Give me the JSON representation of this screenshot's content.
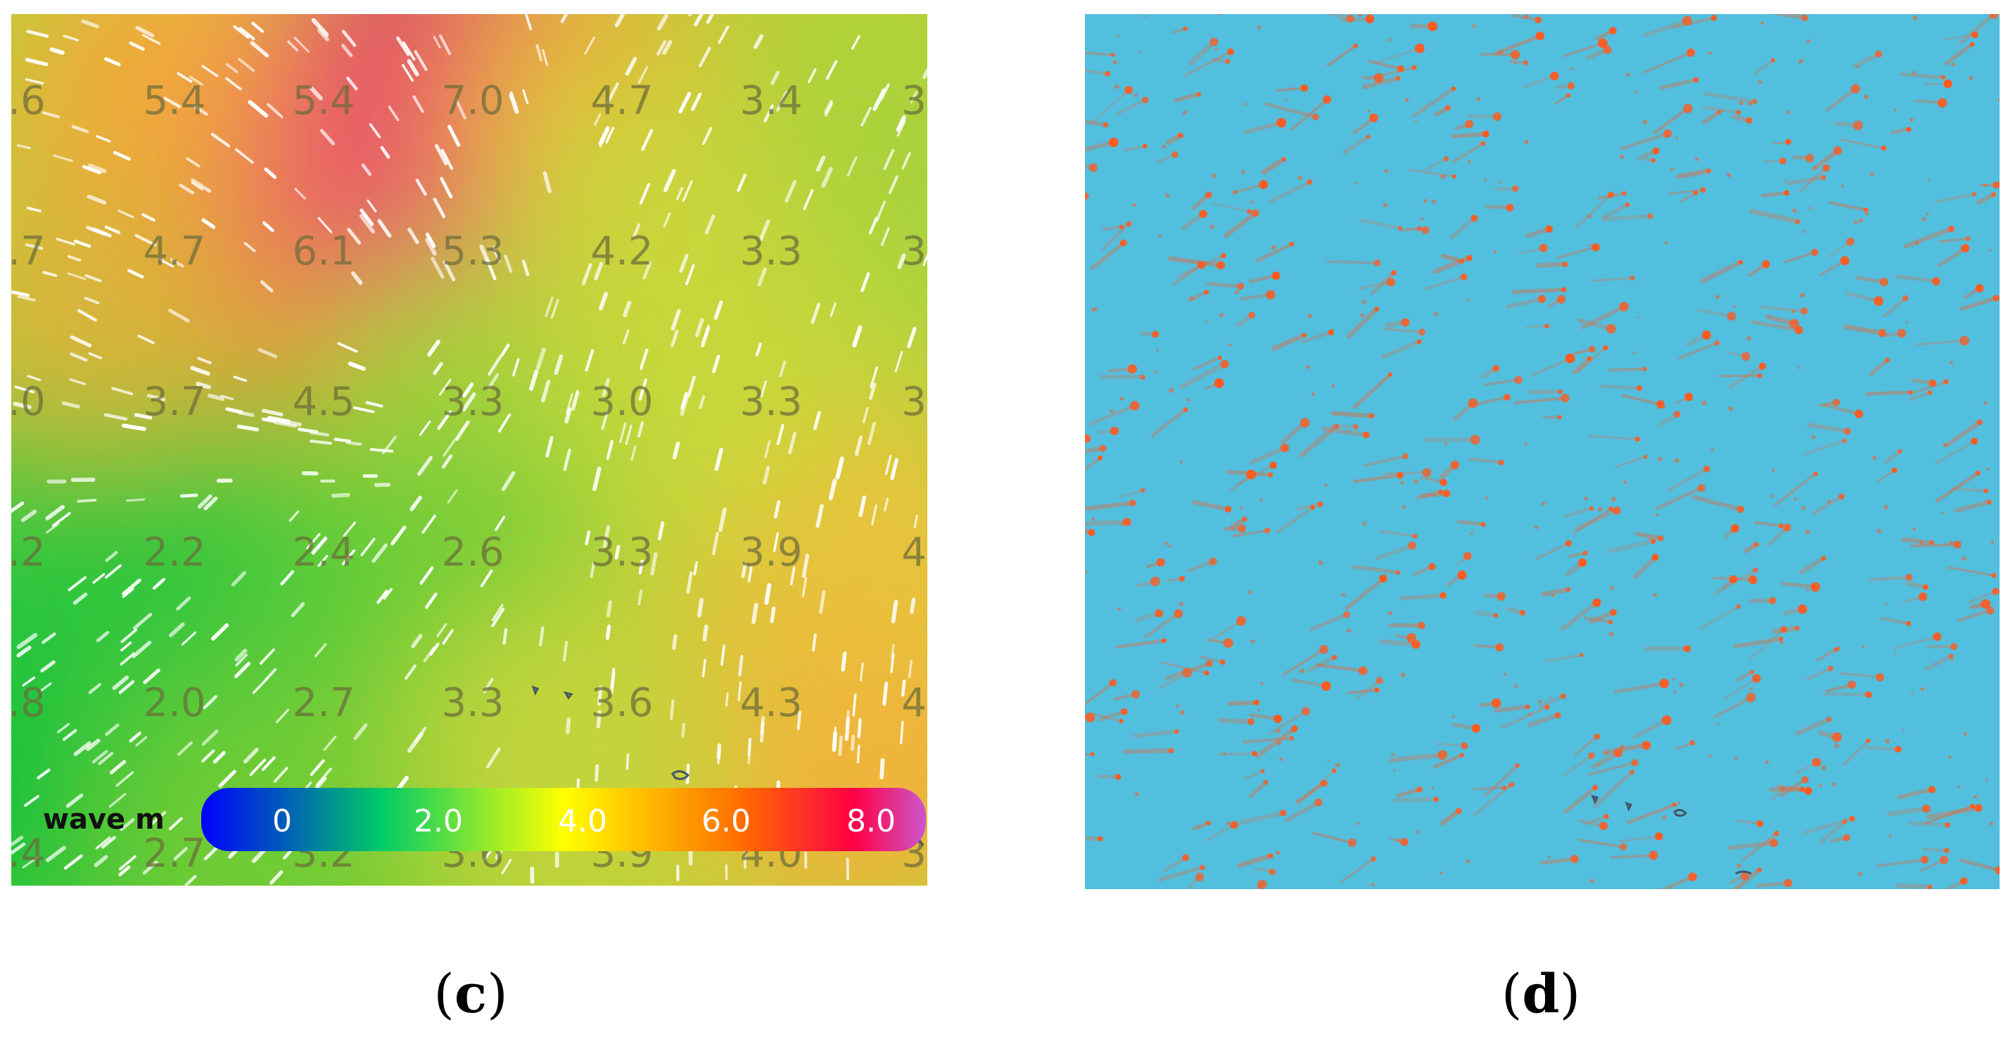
{
  "panels": [
    {
      "id": "c",
      "caption": "c",
      "legend": {
        "label": "wave m",
        "ticks": [
          "0",
          "2.0",
          "4.0",
          "6.0",
          "8.0"
        ],
        "colors": [
          "#0000ff",
          "#00cc66",
          "#ffff00",
          "#ff6a00",
          "#ff0044",
          "#cc55cc"
        ]
      },
      "grid_labels": [
        [
          ".6",
          "5.4",
          "5.4",
          "7.0",
          "4.7",
          "3.4",
          "3."
        ],
        [
          ".7",
          "4.7",
          "6.1",
          "5.3",
          "4.2",
          "3.3",
          "3."
        ],
        [
          ".0",
          "3.7",
          "4.5",
          "3.3",
          "3.0",
          "3.3",
          "3."
        ],
        [
          ".2",
          "2.2",
          "2.4",
          "2.6",
          "3.3",
          "3.9",
          "4."
        ],
        [
          ".8",
          "2.0",
          "2.7",
          "3.3",
          "3.6",
          "4.3",
          "4."
        ],
        [
          ".4",
          "2.7",
          "3.2",
          "3.6",
          "3.9",
          "4.0",
          "3."
        ]
      ]
    },
    {
      "id": "d",
      "caption": "d",
      "colors": {
        "water": "#52bfde",
        "particle": "#ff5a1e"
      }
    }
  ]
}
